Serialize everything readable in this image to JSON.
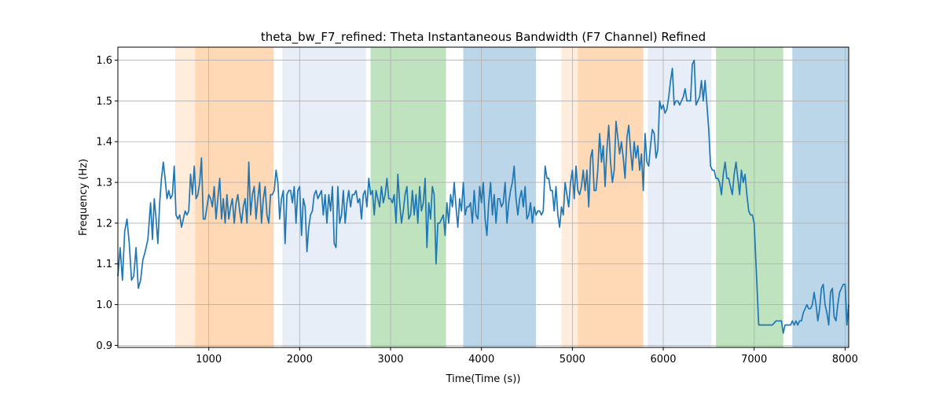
{
  "chart_data": {
    "type": "line",
    "title": "theta_bw_F7_refined: Theta Instantaneous Bandwidth (F7 Channel) Refined",
    "xlabel": "Time(Time (s))",
    "ylabel": "Frequency (Hz)",
    "xlim": [
      0,
      8040
    ],
    "ylim": [
      0.895,
      1.632
    ],
    "grid": true,
    "x_ticks": [
      1000,
      2000,
      3000,
      4000,
      5000,
      6000,
      7000,
      8000
    ],
    "x_tick_labels": [
      "1000",
      "2000",
      "3000",
      "4000",
      "5000",
      "6000",
      "7000",
      "8000"
    ],
    "y_ticks": [
      0.9,
      1.0,
      1.1,
      1.2,
      1.3,
      1.4,
      1.5,
      1.6
    ],
    "y_tick_labels": [
      "0.9",
      "1.0",
      "1.1",
      "1.2",
      "1.3",
      "1.4",
      "1.5",
      "1.6"
    ],
    "line_color": "#1f77b4",
    "shaded_regions": [
      {
        "x0": 630,
        "x1": 850,
        "color": "#ff7f0e",
        "opacity": 0.15
      },
      {
        "x0": 850,
        "x1": 1715,
        "color": "#ff7f0e",
        "opacity": 0.3
      },
      {
        "x0": 1810,
        "x1": 2730,
        "color": "#aec7e8",
        "opacity": 0.3
      },
      {
        "x0": 2780,
        "x1": 3610,
        "color": "#2ca02c",
        "opacity": 0.3
      },
      {
        "x0": 3800,
        "x1": 4600,
        "color": "#1f77b4",
        "opacity": 0.3
      },
      {
        "x0": 4880,
        "x1": 5060,
        "color": "#ff7f0e",
        "opacity": 0.15
      },
      {
        "x0": 5060,
        "x1": 5780,
        "color": "#ff7f0e",
        "opacity": 0.3
      },
      {
        "x0": 5830,
        "x1": 6530,
        "color": "#aec7e8",
        "opacity": 0.3
      },
      {
        "x0": 6580,
        "x1": 7320,
        "color": "#2ca02c",
        "opacity": 0.3
      },
      {
        "x0": 7420,
        "x1": 8040,
        "color": "#1f77b4",
        "opacity": 0.3
      }
    ],
    "series": [
      {
        "x": [
          0,
          25,
          50,
          75,
          100,
          125,
          150,
          175,
          200,
          225,
          250,
          275,
          300,
          330,
          360,
          380,
          400,
          420,
          440,
          460,
          480,
          500,
          520,
          540,
          560,
          580,
          600,
          620,
          640,
          660,
          680,
          700,
          720,
          740,
          760,
          780,
          800,
          820,
          840,
          860,
          880,
          900,
          920,
          940,
          960,
          980,
          1000,
          1020,
          1040,
          1060,
          1080,
          1100,
          1120,
          1140,
          1160,
          1180,
          1200,
          1220,
          1240,
          1260,
          1280,
          1300,
          1320,
          1340,
          1360,
          1380,
          1400,
          1420,
          1440,
          1460,
          1480,
          1500,
          1520,
          1540,
          1560,
          1580,
          1600,
          1620,
          1640,
          1660,
          1680,
          1700,
          1720,
          1740,
          1760,
          1780,
          1800,
          1820,
          1840,
          1860,
          1880,
          1900,
          1920,
          1940,
          1960,
          1980,
          2000,
          2020,
          2040,
          2060,
          2080,
          2100,
          2120,
          2140,
          2160,
          2180,
          2200,
          2220,
          2240,
          2260,
          2280,
          2300,
          2320,
          2340,
          2360,
          2380,
          2400,
          2420,
          2440,
          2460,
          2480,
          2500,
          2520,
          2540,
          2560,
          2580,
          2600,
          2620,
          2640,
          2660,
          2680,
          2700,
          2720,
          2740,
          2760,
          2780,
          2800,
          2820,
          2840,
          2860,
          2880,
          2900,
          2920,
          2940,
          2960,
          2980,
          3000,
          3020,
          3040,
          3060,
          3080,
          3100,
          3120,
          3140,
          3160,
          3180,
          3200,
          3220,
          3240,
          3260,
          3280,
          3300,
          3320,
          3340,
          3360,
          3380,
          3400,
          3420,
          3440,
          3460,
          3480,
          3500,
          3520,
          3540,
          3560,
          3580,
          3600,
          3620,
          3640,
          3660,
          3680,
          3700,
          3720,
          3740,
          3760,
          3780,
          3800,
          3820,
          3840,
          3860,
          3880,
          3900,
          3920,
          3940,
          3960,
          3980,
          4000,
          4020,
          4040,
          4060,
          4080,
          4100,
          4120,
          4140,
          4160,
          4180,
          4200,
          4220,
          4240,
          4260,
          4280,
          4300,
          4320,
          4340,
          4360,
          4380,
          4400,
          4420,
          4440,
          4460,
          4480,
          4500,
          4520,
          4540,
          4560,
          4580,
          4600,
          4620,
          4640,
          4660,
          4680,
          4700,
          4720,
          4740,
          4760,
          4780,
          4800,
          4820,
          4840,
          4860,
          4880,
          4900,
          4920,
          4940,
          4960,
          4980,
          5000,
          5020,
          5040,
          5060,
          5080,
          5100,
          5120,
          5140,
          5160,
          5180,
          5200,
          5220,
          5240,
          5260,
          5280,
          5300,
          5320,
          5340,
          5360,
          5380,
          5400,
          5420,
          5440,
          5460,
          5480,
          5500,
          5520,
          5540,
          5560,
          5580,
          5600,
          5620,
          5640,
          5660,
          5680,
          5700,
          5720,
          5740,
          5760,
          5780,
          5800,
          5820,
          5840,
          5860,
          5880,
          5900,
          5920,
          5940,
          5960,
          5980,
          6000,
          6020,
          6040,
          6060,
          6080,
          6100,
          6120,
          6140,
          6160,
          6180,
          6200,
          6220,
          6240,
          6260,
          6280,
          6300,
          6320,
          6340,
          6360,
          6380,
          6400,
          6420,
          6440,
          6460,
          6480,
          6500,
          6520,
          6540,
          6560,
          6580,
          6600,
          6620,
          6640,
          6660,
          6680,
          6700,
          6720,
          6740,
          6760,
          6780,
          6800,
          6820,
          6840,
          6860,
          6880,
          6900,
          6920,
          6940,
          6960,
          6980,
          7000,
          7050,
          7100,
          7150,
          7200,
          7240,
          7280,
          7300,
          7320,
          7340,
          7360,
          7380,
          7400,
          7420,
          7440,
          7460,
          7480,
          7500,
          7520,
          7540,
          7560,
          7580,
          7600,
          7620,
          7640,
          7660,
          7680,
          7700,
          7720,
          7740,
          7760,
          7780,
          7800,
          7820,
          7840,
          7860,
          7880,
          7900,
          7920,
          7940,
          7960,
          7980,
          8000,
          8020,
          8040
        ],
        "y": [
          1.07,
          1.14,
          1.06,
          1.18,
          1.21,
          1.15,
          1.06,
          1.07,
          1.14,
          1.04,
          1.06,
          1.11,
          1.13,
          1.16,
          1.25,
          1.16,
          1.26,
          1.21,
          1.15,
          1.25,
          1.31,
          1.35,
          1.31,
          1.26,
          1.28,
          1.26,
          1.27,
          1.34,
          1.22,
          1.21,
          1.22,
          1.19,
          1.21,
          1.23,
          1.22,
          1.23,
          1.32,
          1.27,
          1.34,
          1.26,
          1.27,
          1.3,
          1.36,
          1.21,
          1.21,
          1.24,
          1.27,
          1.26,
          1.24,
          1.29,
          1.21,
          1.26,
          1.31,
          1.21,
          1.26,
          1.2,
          1.27,
          1.21,
          1.24,
          1.26,
          1.2,
          1.25,
          1.27,
          1.23,
          1.2,
          1.24,
          1.26,
          1.2,
          1.35,
          1.22,
          1.27,
          1.29,
          1.21,
          1.26,
          1.3,
          1.2,
          1.26,
          1.29,
          1.22,
          1.2,
          1.27,
          1.27,
          1.28,
          1.33,
          1.3,
          1.21,
          1.26,
          1.28,
          1.15,
          1.27,
          1.28,
          1.28,
          1.25,
          1.29,
          1.2,
          1.28,
          1.29,
          1.17,
          1.26,
          1.24,
          1.13,
          1.19,
          1.22,
          1.23,
          1.27,
          1.28,
          1.26,
          1.27,
          1.28,
          1.22,
          1.27,
          1.2,
          1.27,
          1.23,
          1.29,
          1.15,
          1.14,
          1.29,
          1.2,
          1.22,
          1.28,
          1.2,
          1.25,
          1.28,
          1.24,
          1.27,
          1.27,
          1.28,
          1.25,
          1.26,
          1.21,
          1.27,
          1.28,
          1.24,
          1.31,
          1.27,
          1.28,
          1.22,
          1.28,
          1.26,
          1.24,
          1.29,
          1.25,
          1.27,
          1.31,
          1.26,
          1.26,
          1.25,
          1.27,
          1.2,
          1.32,
          1.25,
          1.2,
          1.23,
          1.27,
          1.29,
          1.21,
          1.22,
          1.28,
          1.22,
          1.27,
          1.2,
          1.29,
          1.23,
          1.25,
          1.31,
          1.14,
          1.25,
          1.21,
          1.29,
          1.27,
          1.1,
          1.2,
          1.2,
          1.21,
          1.22,
          1.17,
          1.25,
          1.2,
          1.27,
          1.24,
          1.3,
          1.24,
          1.19,
          1.26,
          1.23,
          1.3,
          1.22,
          1.24,
          1.24,
          1.25,
          1.2,
          1.28,
          1.22,
          1.21,
          1.29,
          1.25,
          1.3,
          1.21,
          1.17,
          1.25,
          1.3,
          1.22,
          1.27,
          1.2,
          1.26,
          1.26,
          1.24,
          1.25,
          1.3,
          1.2,
          1.25,
          1.28,
          1.3,
          1.34,
          1.26,
          1.22,
          1.26,
          1.28,
          1.24,
          1.29,
          1.21,
          1.22,
          1.25,
          1.2,
          1.24,
          1.22,
          1.23,
          1.23,
          1.22,
          1.23,
          1.34,
          1.31,
          1.31,
          1.28,
          1.28,
          1.23,
          1.29,
          1.22,
          1.19,
          1.24,
          1.22,
          1.3,
          1.27,
          1.24,
          1.3,
          1.33,
          1.26,
          1.34,
          1.28,
          1.27,
          1.29,
          1.33,
          1.28,
          1.33,
          1.24,
          1.36,
          1.38,
          1.28,
          1.28,
          1.33,
          1.42,
          1.35,
          1.39,
          1.29,
          1.38,
          1.44,
          1.35,
          1.3,
          1.33,
          1.45,
          1.41,
          1.37,
          1.4,
          1.36,
          1.31,
          1.41,
          1.44,
          1.38,
          1.33,
          1.4,
          1.36,
          1.39,
          1.33,
          1.37,
          1.28,
          1.42,
          1.35,
          1.34,
          1.39,
          1.43,
          1.42,
          1.36,
          1.38,
          1.5,
          1.48,
          1.49,
          1.47,
          1.48,
          1.51,
          1.55,
          1.58,
          1.49,
          1.5,
          1.5,
          1.49,
          1.5,
          1.51,
          1.53,
          1.5,
          1.5,
          1.5,
          1.59,
          1.6,
          1.49,
          1.5,
          1.51,
          1.55,
          1.5,
          1.55,
          1.49,
          1.43,
          1.34,
          1.33,
          1.33,
          1.31,
          1.31,
          1.3,
          1.27,
          1.32,
          1.35,
          1.31,
          1.31,
          1.29,
          1.27,
          1.32,
          1.35,
          1.31,
          1.27,
          1.33,
          1.3,
          1.32,
          1.27,
          1.23,
          1.22,
          1.22,
          1.2,
          0.95,
          0.95,
          0.95,
          0.95,
          0.96,
          0.96,
          0.96,
          0.93,
          0.95,
          0.95,
          0.95,
          0.95,
          0.96,
          0.95,
          0.96,
          0.95,
          0.96,
          0.96,
          0.98,
          0.99,
          1.0,
          0.99,
          0.99,
          1.0,
          1.03,
          1.0,
          0.96,
          0.99,
          1.04,
          1.05,
          1.0,
          0.98,
          0.95,
          1.03,
          1.04,
          0.97,
          0.96,
          1.0,
          1.03,
          1.04,
          1.05,
          1.05,
          0.95,
          1.0
        ]
      }
    ]
  }
}
